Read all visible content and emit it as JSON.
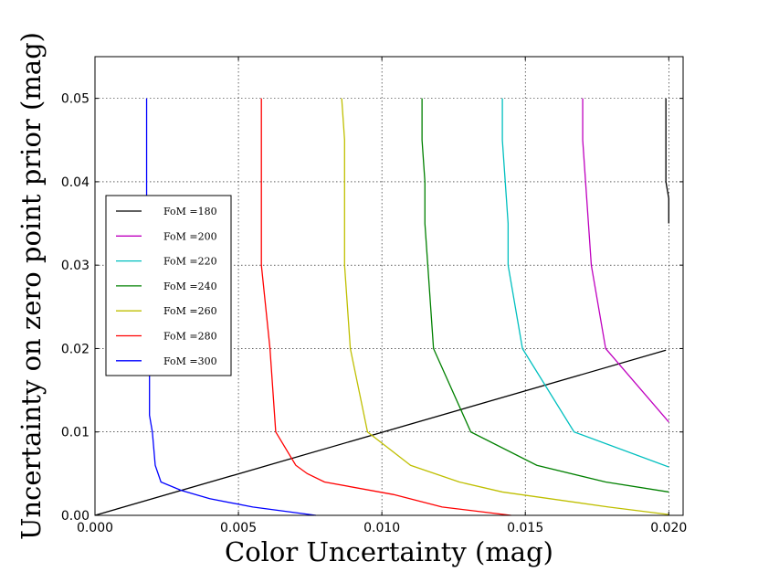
{
  "chart_data": {
    "type": "line",
    "title": "",
    "xlabel": "Color Uncertainty (mag)",
    "ylabel": "Uncertainty on zero point prior (mag)",
    "xlim": [
      0.0,
      0.0205
    ],
    "ylim": [
      0.0,
      0.055
    ],
    "xticks": [
      0.0,
      0.005,
      0.01,
      0.015,
      0.02
    ],
    "xtick_labels": [
      "0.000",
      "0.005",
      "0.010",
      "0.015",
      "0.020"
    ],
    "yticks": [
      0.0,
      0.01,
      0.02,
      0.03,
      0.04,
      0.05
    ],
    "ytick_labels": [
      "0.00",
      "0.01",
      "0.02",
      "0.03",
      "0.04",
      "0.05"
    ],
    "grid": true,
    "legend_position": "center-left",
    "series": [
      {
        "name": "FoM = 180",
        "label_display": "FoM =180",
        "color": "#000000",
        "points": [
          [
            0.0199,
            0.05
          ],
          [
            0.0199,
            0.045
          ],
          [
            0.0199,
            0.04
          ],
          [
            0.02,
            0.038
          ],
          [
            0.02,
            0.035
          ]
        ]
      },
      {
        "name": "FoM = 200",
        "label_display": "FoM =200",
        "color": "#bf00bf",
        "points": [
          [
            0.017,
            0.05
          ],
          [
            0.017,
            0.045
          ],
          [
            0.0171,
            0.04
          ],
          [
            0.0172,
            0.035
          ],
          [
            0.0173,
            0.03
          ],
          [
            0.0178,
            0.02
          ],
          [
            0.02,
            0.0112
          ]
        ]
      },
      {
        "name": "FoM = 220",
        "label_display": "FoM =220",
        "color": "#00bfbf",
        "points": [
          [
            0.0142,
            0.05
          ],
          [
            0.0142,
            0.045
          ],
          [
            0.0143,
            0.04
          ],
          [
            0.0144,
            0.035
          ],
          [
            0.0144,
            0.03
          ],
          [
            0.0149,
            0.02
          ],
          [
            0.0167,
            0.01
          ],
          [
            0.02,
            0.0058
          ]
        ]
      },
      {
        "name": "FoM = 240",
        "label_display": "FoM =240",
        "color": "#008000",
        "points": [
          [
            0.0114,
            0.05
          ],
          [
            0.0114,
            0.045
          ],
          [
            0.0115,
            0.04
          ],
          [
            0.0115,
            0.035
          ],
          [
            0.0116,
            0.03
          ],
          [
            0.0118,
            0.02
          ],
          [
            0.0131,
            0.01
          ],
          [
            0.0154,
            0.006
          ],
          [
            0.0178,
            0.004
          ],
          [
            0.02,
            0.0028
          ]
        ]
      },
      {
        "name": "FoM = 260",
        "label_display": "FoM =260",
        "color": "#bfbf00",
        "points": [
          [
            0.0086,
            0.05
          ],
          [
            0.0087,
            0.045
          ],
          [
            0.0087,
            0.04
          ],
          [
            0.0087,
            0.035
          ],
          [
            0.0087,
            0.03
          ],
          [
            0.0089,
            0.02
          ],
          [
            0.0095,
            0.01
          ],
          [
            0.011,
            0.006
          ],
          [
            0.0127,
            0.004
          ],
          [
            0.0142,
            0.0028
          ],
          [
            0.0179,
            0.001
          ],
          [
            0.02,
            0.0001
          ]
        ]
      },
      {
        "name": "FoM = 280",
        "label_display": "FoM =280",
        "color": "#ff0000",
        "points": [
          [
            0.0058,
            0.05
          ],
          [
            0.0058,
            0.045
          ],
          [
            0.0058,
            0.04
          ],
          [
            0.0058,
            0.035
          ],
          [
            0.0058,
            0.03
          ],
          [
            0.0061,
            0.02
          ],
          [
            0.0063,
            0.01
          ],
          [
            0.007,
            0.006
          ],
          [
            0.0074,
            0.005
          ],
          [
            0.008,
            0.004
          ],
          [
            0.0104,
            0.0025
          ],
          [
            0.0121,
            0.001
          ],
          [
            0.0145,
            0.0
          ]
        ]
      },
      {
        "name": "FoM = 300",
        "label_display": "FoM =300",
        "color": "#0000ff",
        "points": [
          [
            0.0018,
            0.05
          ],
          [
            0.0018,
            0.045
          ],
          [
            0.0018,
            0.04
          ],
          [
            0.0018,
            0.035
          ],
          [
            0.0018,
            0.03
          ],
          [
            0.0019,
            0.02
          ],
          [
            0.0019,
            0.015
          ],
          [
            0.0019,
            0.012
          ],
          [
            0.002,
            0.01
          ],
          [
            0.0021,
            0.006
          ],
          [
            0.0023,
            0.004
          ],
          [
            0.003,
            0.003
          ],
          [
            0.004,
            0.002
          ],
          [
            0.0055,
            0.001
          ],
          [
            0.0077,
            0.0
          ]
        ]
      }
    ],
    "diagonal_line": {
      "name": "diagonal",
      "color": "#000000",
      "points": [
        [
          0.0,
          0.0
        ],
        [
          0.0199,
          0.0198
        ]
      ]
    }
  }
}
